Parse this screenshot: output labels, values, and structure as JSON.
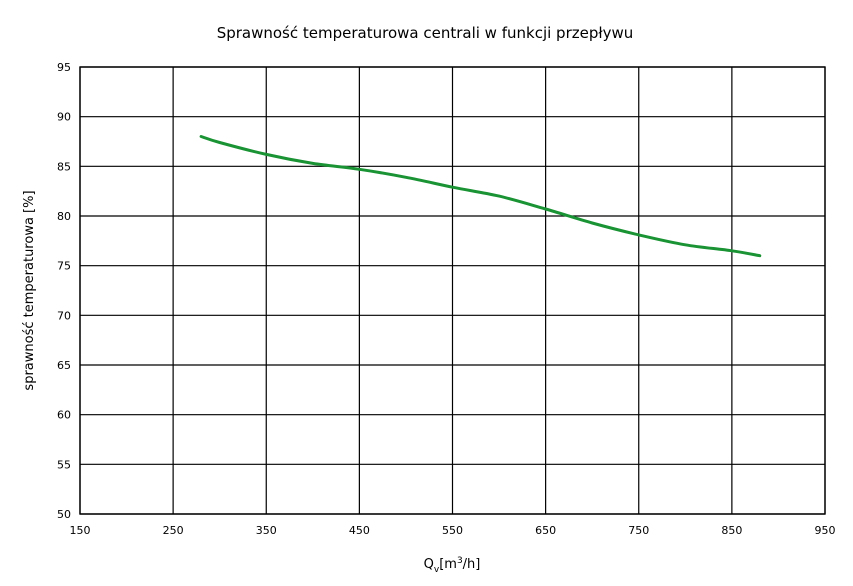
{
  "chart_data": {
    "type": "line",
    "title": "Sprawność temperaturowa centrali w funkcji przepływu",
    "xlabel": {
      "main": "Q",
      "sub": "v",
      "unit_open": "[m",
      "sup": "3",
      "unit_close": "/h]"
    },
    "ylabel": "sprawność temperaturowa [%]",
    "xlim": [
      150,
      950
    ],
    "ylim": [
      50,
      95
    ],
    "xticks": [
      150,
      250,
      350,
      450,
      550,
      650,
      750,
      850,
      950
    ],
    "yticks": [
      50,
      55,
      60,
      65,
      70,
      75,
      80,
      85,
      90,
      95
    ],
    "grid": true,
    "legend": "none",
    "series": [
      {
        "color": "#1a9334",
        "x": [
          280,
          300,
          350,
          400,
          450,
          500,
          550,
          600,
          650,
          700,
          750,
          800,
          850,
          880
        ],
        "y": [
          88.0,
          87.4,
          86.2,
          85.3,
          84.7,
          83.9,
          82.9,
          82.0,
          80.7,
          79.3,
          78.1,
          77.1,
          76.5,
          76.0
        ]
      }
    ]
  }
}
